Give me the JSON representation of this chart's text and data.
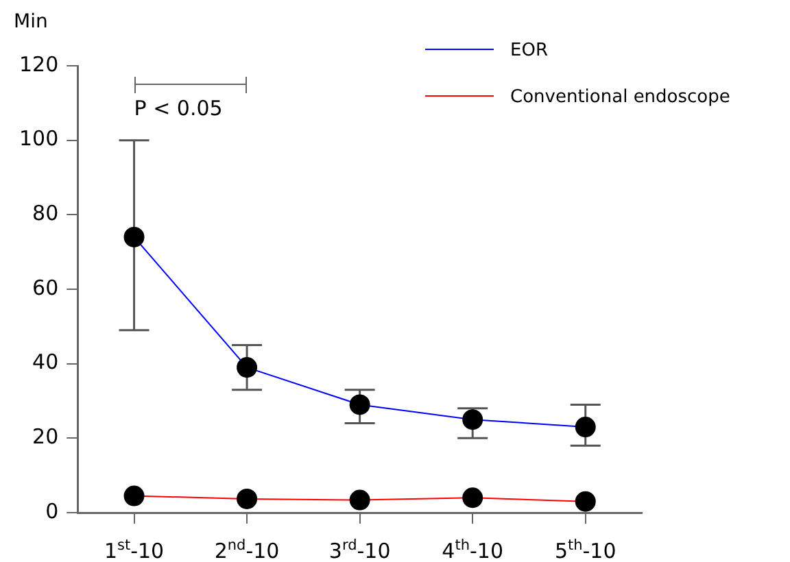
{
  "chart_data": {
    "type": "line",
    "ylabel": "Min",
    "categories": [
      "1$^{st}$-10",
      "2$^{nd}$-10",
      "3$^{rd}$-10",
      "4$^{th}$-10",
      "5$^{th}$-10"
    ],
    "series": [
      {
        "name": "EOR",
        "color": "#0000ff",
        "values": [
          74,
          39,
          29,
          25,
          23
        ],
        "errors": [
          [
            49,
            100
          ],
          [
            33,
            45
          ],
          [
            24,
            33
          ],
          [
            20,
            28
          ],
          [
            18,
            29
          ]
        ]
      },
      {
        "name": "Conventional endoscope",
        "color": "#ff0000",
        "values": [
          4.5,
          3.7,
          3.4,
          4,
          3
        ]
      }
    ],
    "annotations": [
      "P < 0.05"
    ],
    "ylim": [
      0,
      120
    ],
    "yticks": [
      0,
      20,
      40,
      60,
      80,
      100,
      120
    ],
    "grid": false,
    "legend": "top right",
    "marker": "circle",
    "line_style": "solid"
  }
}
